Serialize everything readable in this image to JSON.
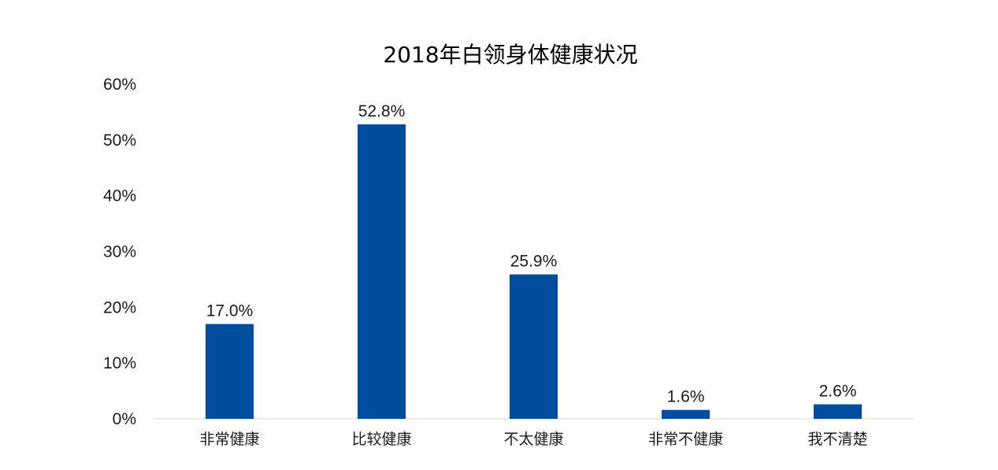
{
  "chart_data": {
    "type": "bar",
    "title": "2018年白领身体健康状况",
    "xlabel": "",
    "ylabel": "",
    "categories": [
      "非常健康",
      "比较健康",
      "不太健康",
      "非常不健康",
      "我不清楚"
    ],
    "values": [
      17.0,
      52.8,
      25.9,
      1.6,
      2.6
    ],
    "data_labels": [
      "17.0%",
      "52.8%",
      "25.9%",
      "1.6%",
      "2.6%"
    ],
    "ylim": [
      0,
      60
    ],
    "yticks": [
      0,
      10,
      20,
      30,
      40,
      50,
      60
    ],
    "ytick_labels": [
      "0%",
      "10%",
      "20%",
      "30%",
      "40%",
      "50%",
      "60%"
    ],
    "grid": false,
    "legend": "none",
    "bar_color": "#004C9E",
    "axis_color": "#D9D9D9"
  }
}
